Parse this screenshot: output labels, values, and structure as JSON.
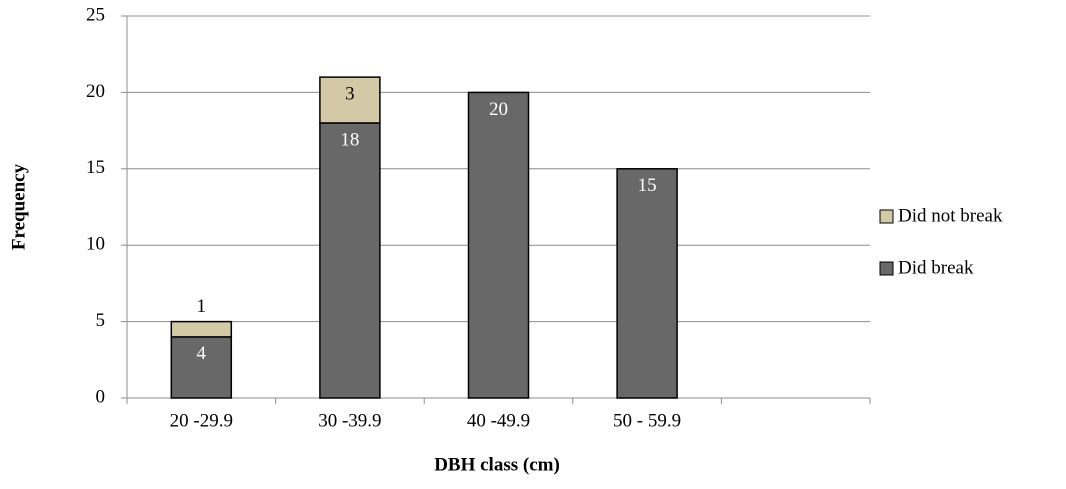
{
  "chart_data": {
    "type": "stacked_bar",
    "x_label": "DBH class (cm)",
    "y_label": "Frequency",
    "categories": [
      "20 -29.9",
      "30 -39.9",
      "40 -49.9",
      "50 - 59.9",
      null
    ],
    "series": [
      {
        "name": "Did break",
        "color": "#686868",
        "values": [
          4,
          18,
          20,
          15,
          null
        ]
      },
      {
        "name": "Did not break",
        "color": "#d4c9a6",
        "values": [
          1,
          3,
          null,
          null,
          null
        ]
      }
    ],
    "ylim": [
      0,
      25
    ],
    "yticks": [
      0,
      5,
      10,
      15,
      20,
      25
    ],
    "grid": true,
    "legend": "right"
  }
}
